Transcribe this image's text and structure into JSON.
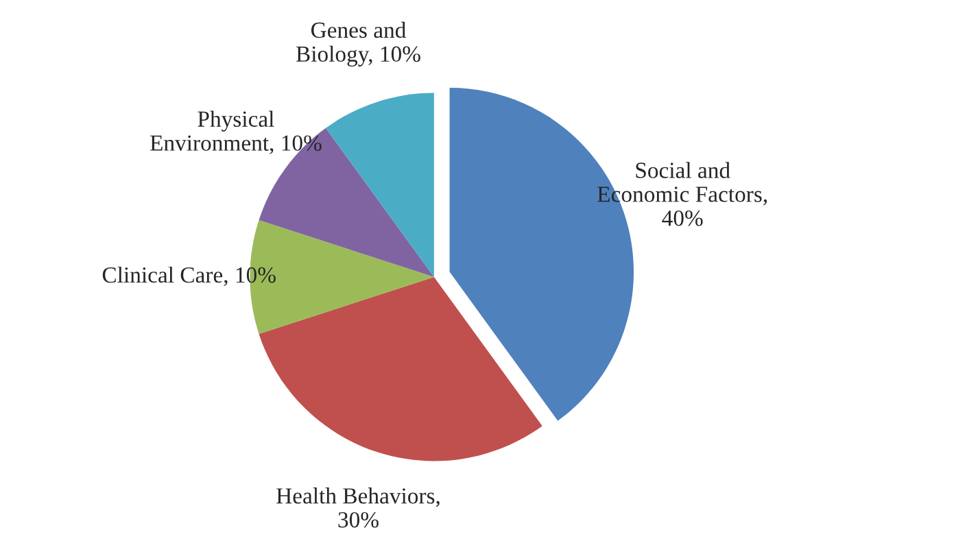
{
  "chart_data": {
    "type": "pie",
    "categories": [
      "Social and\nEconomic Factors,\n40%",
      "Health Behaviors,\n30%",
      "Clinical Care, 10%",
      "Physical\nEnvironment, 10%",
      "Genes and\nBiology, 10%"
    ],
    "values": [
      40,
      30,
      10,
      10,
      10
    ],
    "colors": [
      "#4f81bd",
      "#c0504d",
      "#9bbb59",
      "#8064a2",
      "#4bacc6"
    ],
    "legend": false
  }
}
